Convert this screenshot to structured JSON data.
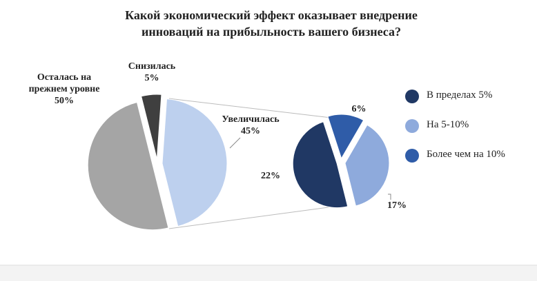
{
  "chart_data": {
    "type": "pie-of-pie",
    "title": "Какой экономический эффект оказывает внедрение инноваций на прибыльность вашего бизнеса?",
    "categories": [
      "Снизилась",
      "Увеличилась",
      "Осталась на прежнем уровне"
    ],
    "values": [
      5,
      45,
      50
    ],
    "value_labels": [
      "5%",
      "45%",
      "50%"
    ],
    "colors": [
      "#3f3f3f",
      "#bdd0ee",
      "#a5a5a5"
    ],
    "sub": {
      "categories": [
        "Более чем на 10%",
        "На 5-10%",
        "В пределах 5%"
      ],
      "values": [
        6,
        17,
        22
      ],
      "value_labels": [
        "6%",
        "17%",
        "22%"
      ],
      "colors": [
        "#2f5ca8",
        "#8eaadc",
        "#203864"
      ]
    },
    "legend_position": "right"
  }
}
